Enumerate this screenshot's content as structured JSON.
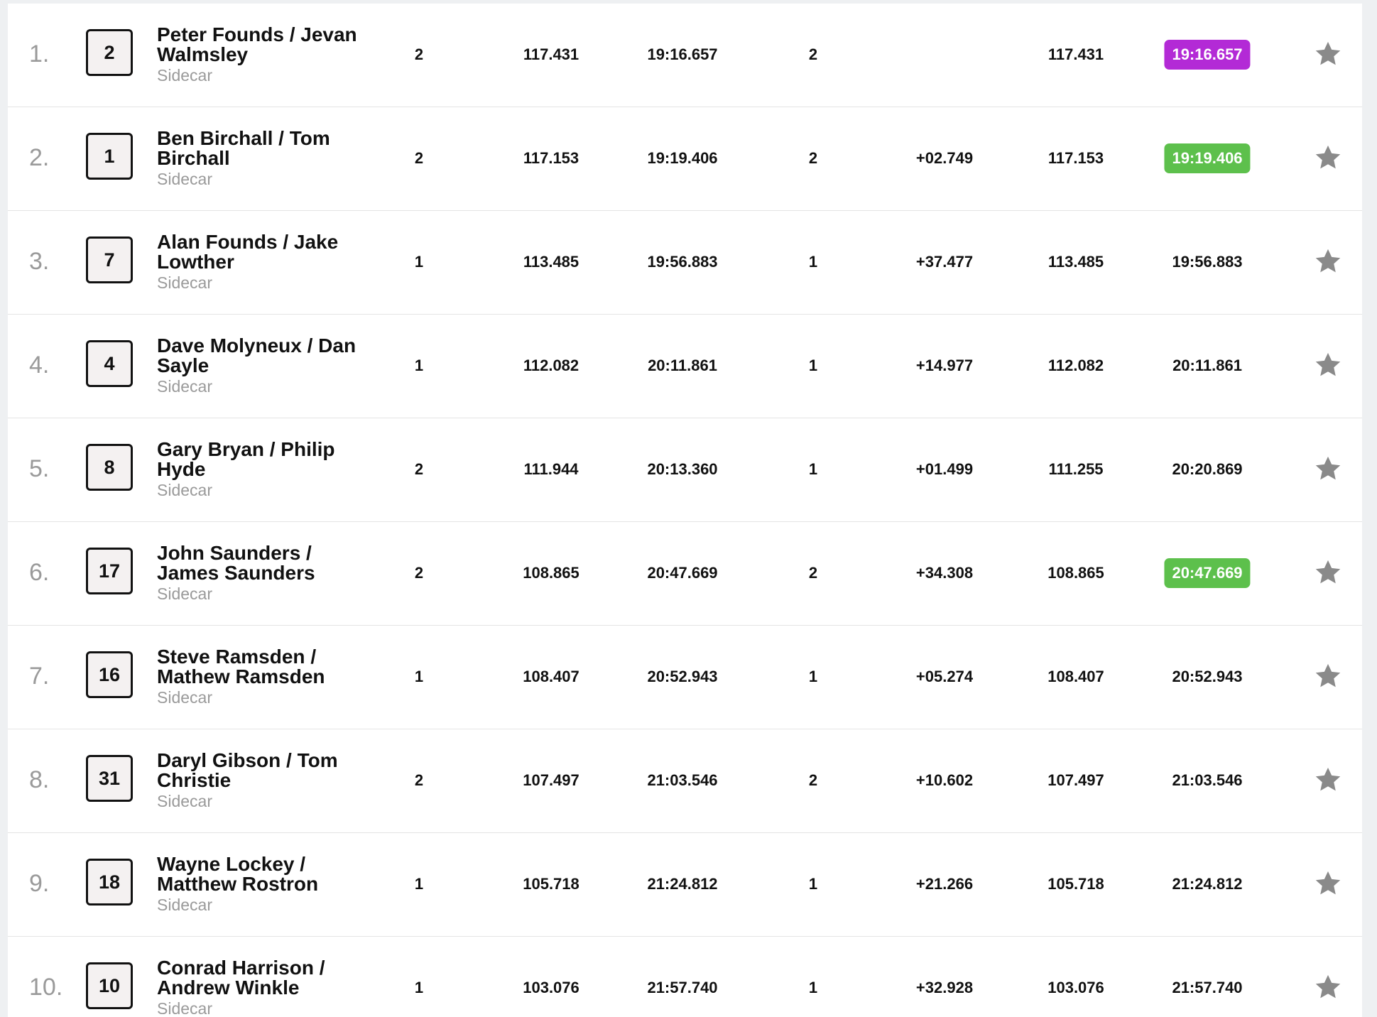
{
  "columns": [
    "position",
    "number",
    "rider",
    "laps",
    "speed",
    "time",
    "best_lap",
    "gap",
    "best_speed",
    "best_time",
    "favourite"
  ],
  "colors": {
    "purple_best": "#b32ad6",
    "green_best": "#5dc04c",
    "star": "#8a8a8a"
  },
  "rows": [
    {
      "pos": "1.",
      "num": "2",
      "name": "Peter Founds / Jevan Walmsley",
      "cls": "Sidecar",
      "laps": "2",
      "speed": "117.431",
      "time": "19:16.657",
      "best_lap": "2",
      "gap": "",
      "best_speed": "117.431",
      "best_time": "19:16.657",
      "highlight": "purple",
      "icon": "star-icon"
    },
    {
      "pos": "2.",
      "num": "1",
      "name": "Ben Birchall / Tom Birchall",
      "cls": "Sidecar",
      "laps": "2",
      "speed": "117.153",
      "time": "19:19.406",
      "best_lap": "2",
      "gap": "+02.749",
      "best_speed": "117.153",
      "best_time": "19:19.406",
      "highlight": "green",
      "icon": "star-icon"
    },
    {
      "pos": "3.",
      "num": "7",
      "name": "Alan Founds / Jake Lowther",
      "cls": "Sidecar",
      "laps": "1",
      "speed": "113.485",
      "time": "19:56.883",
      "best_lap": "1",
      "gap": "+37.477",
      "best_speed": "113.485",
      "best_time": "19:56.883",
      "highlight": "",
      "icon": "star-icon"
    },
    {
      "pos": "4.",
      "num": "4",
      "name": "Dave Molyneux / Dan Sayle",
      "cls": "Sidecar",
      "laps": "1",
      "speed": "112.082",
      "time": "20:11.861",
      "best_lap": "1",
      "gap": "+14.977",
      "best_speed": "112.082",
      "best_time": "20:11.861",
      "highlight": "",
      "icon": "star-icon"
    },
    {
      "pos": "5.",
      "num": "8",
      "name": "Gary Bryan / Philip Hyde",
      "cls": "Sidecar",
      "laps": "2",
      "speed": "111.944",
      "time": "20:13.360",
      "best_lap": "1",
      "gap": "+01.499",
      "best_speed": "111.255",
      "best_time": "20:20.869",
      "highlight": "",
      "icon": "star-icon"
    },
    {
      "pos": "6.",
      "num": "17",
      "name": "John Saunders / James Saunders",
      "cls": "Sidecar",
      "laps": "2",
      "speed": "108.865",
      "time": "20:47.669",
      "best_lap": "2",
      "gap": "+34.308",
      "best_speed": "108.865",
      "best_time": "20:47.669",
      "highlight": "green",
      "icon": "star-icon"
    },
    {
      "pos": "7.",
      "num": "16",
      "name": "Steve Ramsden / Mathew Ramsden",
      "cls": "Sidecar",
      "laps": "1",
      "speed": "108.407",
      "time": "20:52.943",
      "best_lap": "1",
      "gap": "+05.274",
      "best_speed": "108.407",
      "best_time": "20:52.943",
      "highlight": "",
      "icon": "star-icon"
    },
    {
      "pos": "8.",
      "num": "31",
      "name": "Daryl Gibson / Tom Christie",
      "cls": "Sidecar",
      "laps": "2",
      "speed": "107.497",
      "time": "21:03.546",
      "best_lap": "2",
      "gap": "+10.602",
      "best_speed": "107.497",
      "best_time": "21:03.546",
      "highlight": "",
      "icon": "star-icon"
    },
    {
      "pos": "9.",
      "num": "18",
      "name": "Wayne Lockey / Matthew Rostron",
      "cls": "Sidecar",
      "laps": "1",
      "speed": "105.718",
      "time": "21:24.812",
      "best_lap": "1",
      "gap": "+21.266",
      "best_speed": "105.718",
      "best_time": "21:24.812",
      "highlight": "",
      "icon": "star-icon"
    },
    {
      "pos": "10.",
      "num": "10",
      "name": "Conrad Harrison / Andrew Winkle",
      "cls": "Sidecar",
      "laps": "1",
      "speed": "103.076",
      "time": "21:57.740",
      "best_lap": "1",
      "gap": "+32.928",
      "best_speed": "103.076",
      "best_time": "21:57.740",
      "highlight": "",
      "icon": "star-icon"
    }
  ]
}
